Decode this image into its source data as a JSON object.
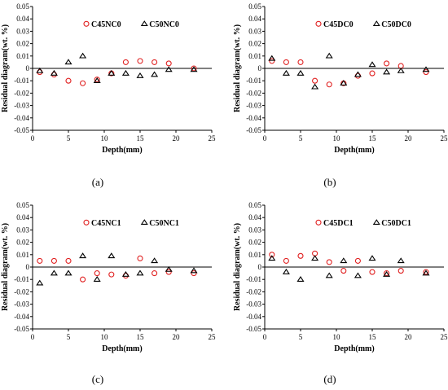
{
  "colors": {
    "series_a": "#e02020",
    "series_b": "#000000"
  },
  "chart_data": [
    {
      "type": "scatter",
      "panel_label": "(a)",
      "xlabel": "Depth(mm)",
      "ylabel": "Residual diagram(wt. %)",
      "xlim": [
        0,
        25
      ],
      "ylim": [
        -0.05,
        0.05
      ],
      "xticks": [
        "0",
        "5",
        "10",
        "15",
        "20",
        "25"
      ],
      "yticks": [
        "-0.05",
        "-0.04",
        "-0.03",
        "-0.02",
        "-0.01",
        "0",
        "0.01",
        "0.02",
        "0.03",
        "0.04",
        "0.05"
      ],
      "series": [
        {
          "name": "C45NC0",
          "marker": "circle",
          "x": [
            1,
            3,
            5,
            7,
            9,
            11,
            13,
            15,
            17,
            19,
            22.5
          ],
          "y": [
            -0.003,
            -0.005,
            -0.01,
            -0.012,
            -0.009,
            -0.004,
            0.005,
            0.006,
            0.005,
            0.004,
            0.0
          ]
        },
        {
          "name": "C50NC0",
          "marker": "triangle",
          "x": [
            1,
            3,
            5,
            7,
            9,
            11,
            13,
            15,
            17,
            19,
            22.5
          ],
          "y": [
            -0.002,
            -0.004,
            0.005,
            0.01,
            -0.01,
            -0.004,
            -0.004,
            -0.006,
            -0.005,
            -0.001,
            -0.001
          ]
        }
      ]
    },
    {
      "type": "scatter",
      "panel_label": "(b)",
      "xlabel": "Depth(mm)",
      "ylabel": "Residual diagram(wt. %)",
      "xlim": [
        0,
        25
      ],
      "ylim": [
        -0.05,
        0.05
      ],
      "xticks": [
        "0",
        "5",
        "10",
        "15",
        "20",
        "25"
      ],
      "yticks": [
        "-0.05",
        "-0.04",
        "-0.03",
        "-0.02",
        "-0.01",
        "0",
        "0.01",
        "0.02",
        "0.03",
        "0.04",
        "0.05"
      ],
      "series": [
        {
          "name": "C45DC0",
          "marker": "circle",
          "x": [
            1,
            3,
            5,
            7,
            9,
            11,
            13,
            15,
            17,
            19,
            22.5
          ],
          "y": [
            0.006,
            0.005,
            0.005,
            -0.01,
            -0.013,
            -0.012,
            -0.006,
            -0.004,
            0.004,
            0.002,
            -0.003
          ]
        },
        {
          "name": "C50DC0",
          "marker": "triangle",
          "x": [
            1,
            3,
            5,
            7,
            9,
            11,
            13,
            15,
            17,
            19,
            22.5
          ],
          "y": [
            0.008,
            -0.004,
            -0.004,
            -0.015,
            0.01,
            -0.012,
            -0.005,
            0.003,
            -0.003,
            -0.002,
            -0.001
          ]
        }
      ]
    },
    {
      "type": "scatter",
      "panel_label": "(c)",
      "xlabel": "Depth(mm)",
      "ylabel": "Residual diagram(wt. %)",
      "xlim": [
        0,
        25
      ],
      "ylim": [
        -0.05,
        0.05
      ],
      "xticks": [
        "0",
        "5",
        "10",
        "15",
        "20",
        "25"
      ],
      "yticks": [
        "-0.05",
        "-0.04",
        "-0.03",
        "-0.02",
        "-0.01",
        "0",
        "0.01",
        "0.02",
        "0.03",
        "0.04",
        "0.05"
      ],
      "series": [
        {
          "name": "C45NC1",
          "marker": "circle",
          "x": [
            1,
            3,
            5,
            7,
            9,
            11,
            13,
            15,
            17,
            19,
            22.5
          ],
          "y": [
            0.005,
            0.005,
            0.005,
            -0.01,
            -0.005,
            -0.006,
            -0.007,
            0.007,
            -0.005,
            -0.004,
            -0.005
          ]
        },
        {
          "name": "C50NC1",
          "marker": "triangle",
          "x": [
            1,
            3,
            5,
            7,
            9,
            11,
            13,
            15,
            17,
            19,
            22.5
          ],
          "y": [
            -0.013,
            -0.005,
            -0.005,
            0.009,
            -0.01,
            0.009,
            -0.006,
            -0.005,
            0.005,
            -0.002,
            -0.003
          ]
        }
      ]
    },
    {
      "type": "scatter",
      "panel_label": "(d)",
      "xlabel": "Depth(mm)",
      "ylabel": "Residual diagram(wt. %)",
      "xlim": [
        0,
        25
      ],
      "ylim": [
        -0.05,
        0.05
      ],
      "xticks": [
        "0",
        "5",
        "10",
        "15",
        "20",
        "25"
      ],
      "yticks": [
        "-0.05",
        "-0.04",
        "-0.03",
        "-0.02",
        "-0.01",
        "0",
        "0.01",
        "0.02",
        "0.03",
        "0.04",
        "0.05"
      ],
      "series": [
        {
          "name": "C45DC1",
          "marker": "circle",
          "x": [
            1,
            3,
            5,
            7,
            9,
            11,
            13,
            15,
            17,
            19,
            22.5
          ],
          "y": [
            0.01,
            0.005,
            0.009,
            0.011,
            0.004,
            -0.003,
            0.005,
            -0.004,
            -0.005,
            -0.003,
            -0.004
          ]
        },
        {
          "name": "C50DC1",
          "marker": "triangle",
          "x": [
            1,
            3,
            5,
            7,
            9,
            11,
            13,
            15,
            17,
            19,
            22.5
          ],
          "y": [
            0.007,
            -0.004,
            -0.01,
            0.007,
            -0.007,
            0.005,
            -0.007,
            0.007,
            -0.006,
            0.005,
            -0.005
          ]
        }
      ]
    }
  ]
}
